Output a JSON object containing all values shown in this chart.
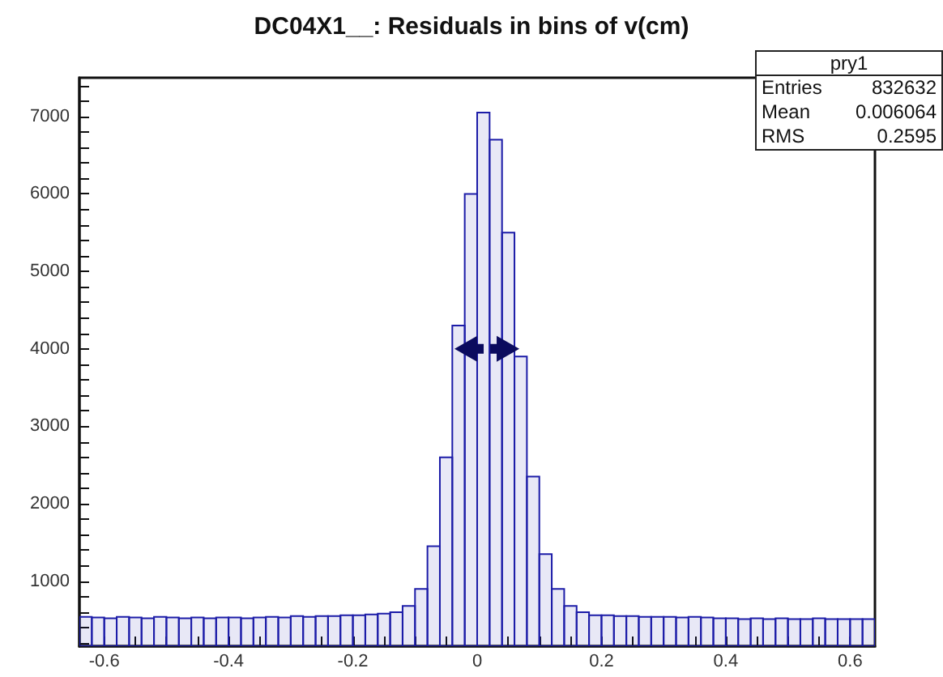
{
  "chart_data": {
    "type": "histogram",
    "title": "DC04X1__: Residuals in bins of v(cm)",
    "bins": [
      -0.64,
      -0.62,
      -0.6,
      -0.58,
      -0.56,
      -0.54,
      -0.52,
      -0.5,
      -0.48,
      -0.46,
      -0.44,
      -0.42,
      -0.4,
      -0.38,
      -0.36,
      -0.34,
      -0.32,
      -0.3,
      -0.28,
      -0.26,
      -0.24,
      -0.22,
      -0.2,
      -0.18,
      -0.16,
      -0.14,
      -0.12,
      -0.1,
      -0.08,
      -0.06,
      -0.04,
      -0.02,
      0,
      0.02,
      0.04,
      0.06,
      0.08,
      0.1,
      0.12,
      0.14,
      0.16,
      0.18,
      0.2,
      0.22,
      0.24,
      0.26,
      0.28,
      0.3,
      0.32,
      0.34,
      0.36,
      0.38,
      0.4,
      0.42,
      0.44,
      0.46,
      0.48,
      0.5,
      0.52,
      0.54,
      0.56,
      0.58,
      0.6,
      0.62,
      0.64
    ],
    "values": [
      540,
      530,
      520,
      540,
      530,
      520,
      540,
      530,
      520,
      530,
      520,
      530,
      530,
      520,
      530,
      540,
      530,
      550,
      540,
      550,
      550,
      560,
      560,
      570,
      580,
      600,
      680,
      900,
      1450,
      2600,
      4300,
      6000,
      7050,
      6700,
      5500,
      3900,
      2350,
      1350,
      900,
      680,
      600,
      560,
      560,
      550,
      550,
      540,
      540,
      540,
      530,
      540,
      530,
      520,
      520,
      510,
      520,
      510,
      520,
      510,
      510,
      520,
      510,
      510,
      510,
      510
    ],
    "color": "#1c1ca8",
    "xlim": [
      -0.64,
      0.64
    ],
    "xticks": [
      -0.6,
      {
        "value": -0.55,
        "label": null
      },
      {
        "value": -0.5,
        "label": null
      },
      {
        "value": -0.45,
        "label": null
      },
      -0.4,
      {
        "value": -0.35,
        "label": null
      },
      {
        "value": -0.3,
        "label": null
      },
      {
        "value": -0.25,
        "label": null
      },
      -0.2,
      {
        "value": -0.15,
        "label": null
      },
      {
        "value": -0.1,
        "label": null
      },
      {
        "value": -0.05,
        "label": null
      },
      0,
      {
        "value": 0.05,
        "label": null
      },
      {
        "value": 0.1,
        "label": null
      },
      {
        "value": 0.15,
        "label": null
      },
      0.2,
      {
        "value": 0.25,
        "label": null
      },
      {
        "value": 0.3,
        "label": null
      },
      {
        "value": 0.35,
        "label": null
      },
      0.4,
      {
        "value": 0.45,
        "label": null
      },
      {
        "value": 0.5,
        "label": null
      },
      {
        "value": 0.55,
        "label": null
      },
      0.6
    ],
    "ylim": [
      160,
      7500
    ],
    "yticks": [
      {
        "value": 200,
        "label": null
      },
      {
        "value": 400,
        "label": null
      },
      {
        "value": 600,
        "label": null
      },
      {
        "value": 800,
        "label": null
      },
      1000,
      {
        "value": 1200,
        "label": null
      },
      {
        "value": 1400,
        "label": null
      },
      {
        "value": 1600,
        "label": null
      },
      {
        "value": 1800,
        "label": null
      },
      2000,
      {
        "value": 2200,
        "label": null
      },
      {
        "value": 2400,
        "label": null
      },
      {
        "value": 2600,
        "label": null
      },
      {
        "value": 2800,
        "label": null
      },
      3000,
      {
        "value": 3200,
        "label": null
      },
      {
        "value": 3400,
        "label": null
      },
      {
        "value": 3600,
        "label": null
      },
      {
        "value": 3800,
        "label": null
      },
      4000,
      {
        "value": 4200,
        "label": null
      },
      {
        "value": 4400,
        "label": null
      },
      {
        "value": 4600,
        "label": null
      },
      {
        "value": 4800,
        "label": null
      },
      5000,
      {
        "value": 5200,
        "label": null
      },
      {
        "value": 5400,
        "label": null
      },
      {
        "value": 5600,
        "label": null
      },
      {
        "value": 5800,
        "label": null
      },
      6000,
      {
        "value": 6200,
        "label": null
      },
      {
        "value": 6400,
        "label": null
      },
      {
        "value": 6600,
        "label": null
      },
      {
        "value": 6800,
        "label": null
      },
      7000,
      {
        "value": 7200,
        "label": null
      },
      {
        "value": 7400,
        "label": null
      }
    ],
    "grid": false,
    "annotations": [
      "pry1",
      "Entries 832632",
      "Mean 0.006064",
      "RMS 0.2595"
    ]
  }
}
